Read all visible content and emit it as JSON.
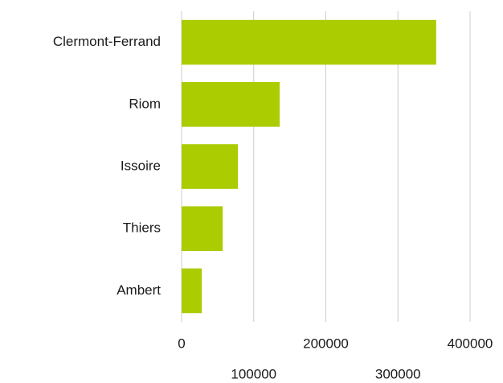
{
  "chart_data": {
    "type": "barh",
    "categories": [
      "Clermont-Ferrand",
      "Riom",
      "Issoire",
      "Thiers",
      "Ambert"
    ],
    "values": [
      353000,
      136000,
      78000,
      57000,
      28000
    ],
    "color": "#aacc00",
    "xlim": [
      0,
      400000
    ],
    "xticks": [
      0,
      100000,
      200000,
      300000,
      400000
    ],
    "grid": true
  }
}
